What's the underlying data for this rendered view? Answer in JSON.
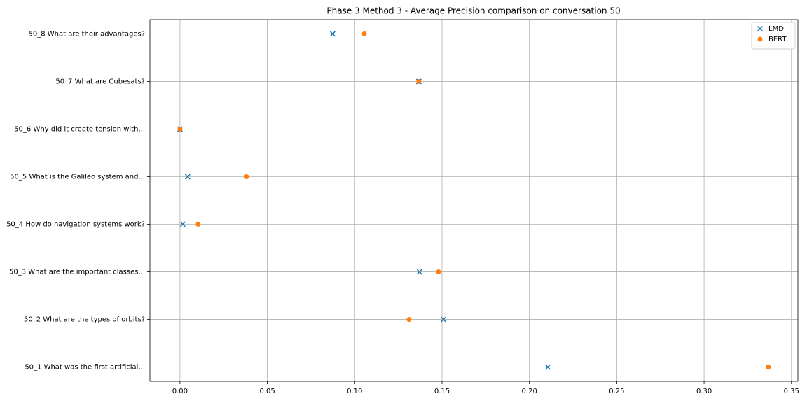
{
  "chart_data": {
    "type": "scatter",
    "title": "Phase 3 Method 3 - Average Precision comparison on conversation 50",
    "categories": [
      "50_1 What was the first artificial...",
      "50_2 What are the types of orbits?",
      "50_3 What are the important classes...",
      "50_4 How do navigation systems work?",
      "50_5 What is the Galileo system and...",
      "50_6 Why did it create tension with...",
      "50_7 What are Cubesats?",
      "50_8 What are their advantages?"
    ],
    "series": [
      {
        "name": "LMD",
        "color": "#1f77b4",
        "marker": "x",
        "values": [
          0.2105,
          0.1508,
          0.1371,
          0.0016,
          0.0044,
          0.0,
          0.1367,
          0.0874
        ]
      },
      {
        "name": "BERT",
        "color": "#ff7f0e",
        "marker": "o",
        "values": [
          0.3368,
          0.1311,
          0.148,
          0.0104,
          0.0381,
          0.0,
          0.1367,
          0.1055
        ]
      }
    ],
    "xlim": [
      -0.0172,
      0.3537
    ],
    "xticks": [
      {
        "value": 0,
        "label": "0.00"
      },
      {
        "value": 0.05,
        "label": "0.05"
      },
      {
        "value": 0.1,
        "label": "0.10"
      },
      {
        "value": 0.15,
        "label": "0.15"
      },
      {
        "value": 0.2,
        "label": "0.20"
      },
      {
        "value": 0.25,
        "label": "0.25"
      },
      {
        "value": 0.3,
        "label": "0.30"
      },
      {
        "value": 0.35,
        "label": "0.35"
      }
    ],
    "grid": true,
    "legend": "upper right"
  }
}
